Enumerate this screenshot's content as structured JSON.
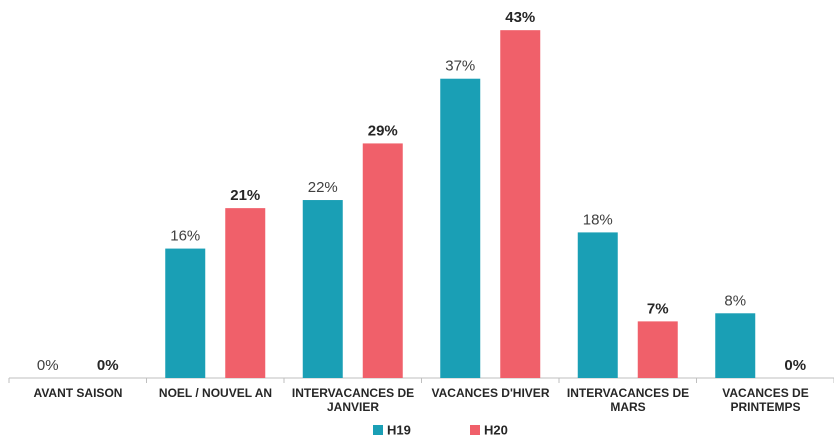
{
  "chart_data": {
    "type": "bar",
    "categories": [
      "AVANT SAISON",
      "NOEL / NOUVEL AN",
      "INTERVACANCES DE JANVIER",
      "VACANCES D'HIVER",
      "INTERVACANCES DE MARS",
      "VACANCES DE PRINTEMPS"
    ],
    "series": [
      {
        "name": "H19",
        "color": "#1a9fb5",
        "values": [
          0,
          16,
          22,
          37,
          18,
          8
        ],
        "value_labels": [
          "0%",
          "16%",
          "22%",
          "37%",
          "18%",
          "8%"
        ]
      },
      {
        "name": "H20",
        "color": "#f0606a",
        "values": [
          0,
          21,
          29,
          43,
          7,
          0
        ],
        "value_labels": [
          "0%",
          "21%",
          "29%",
          "43%",
          "7%",
          "0%"
        ]
      }
    ],
    "ylim": [
      0,
      45
    ]
  }
}
